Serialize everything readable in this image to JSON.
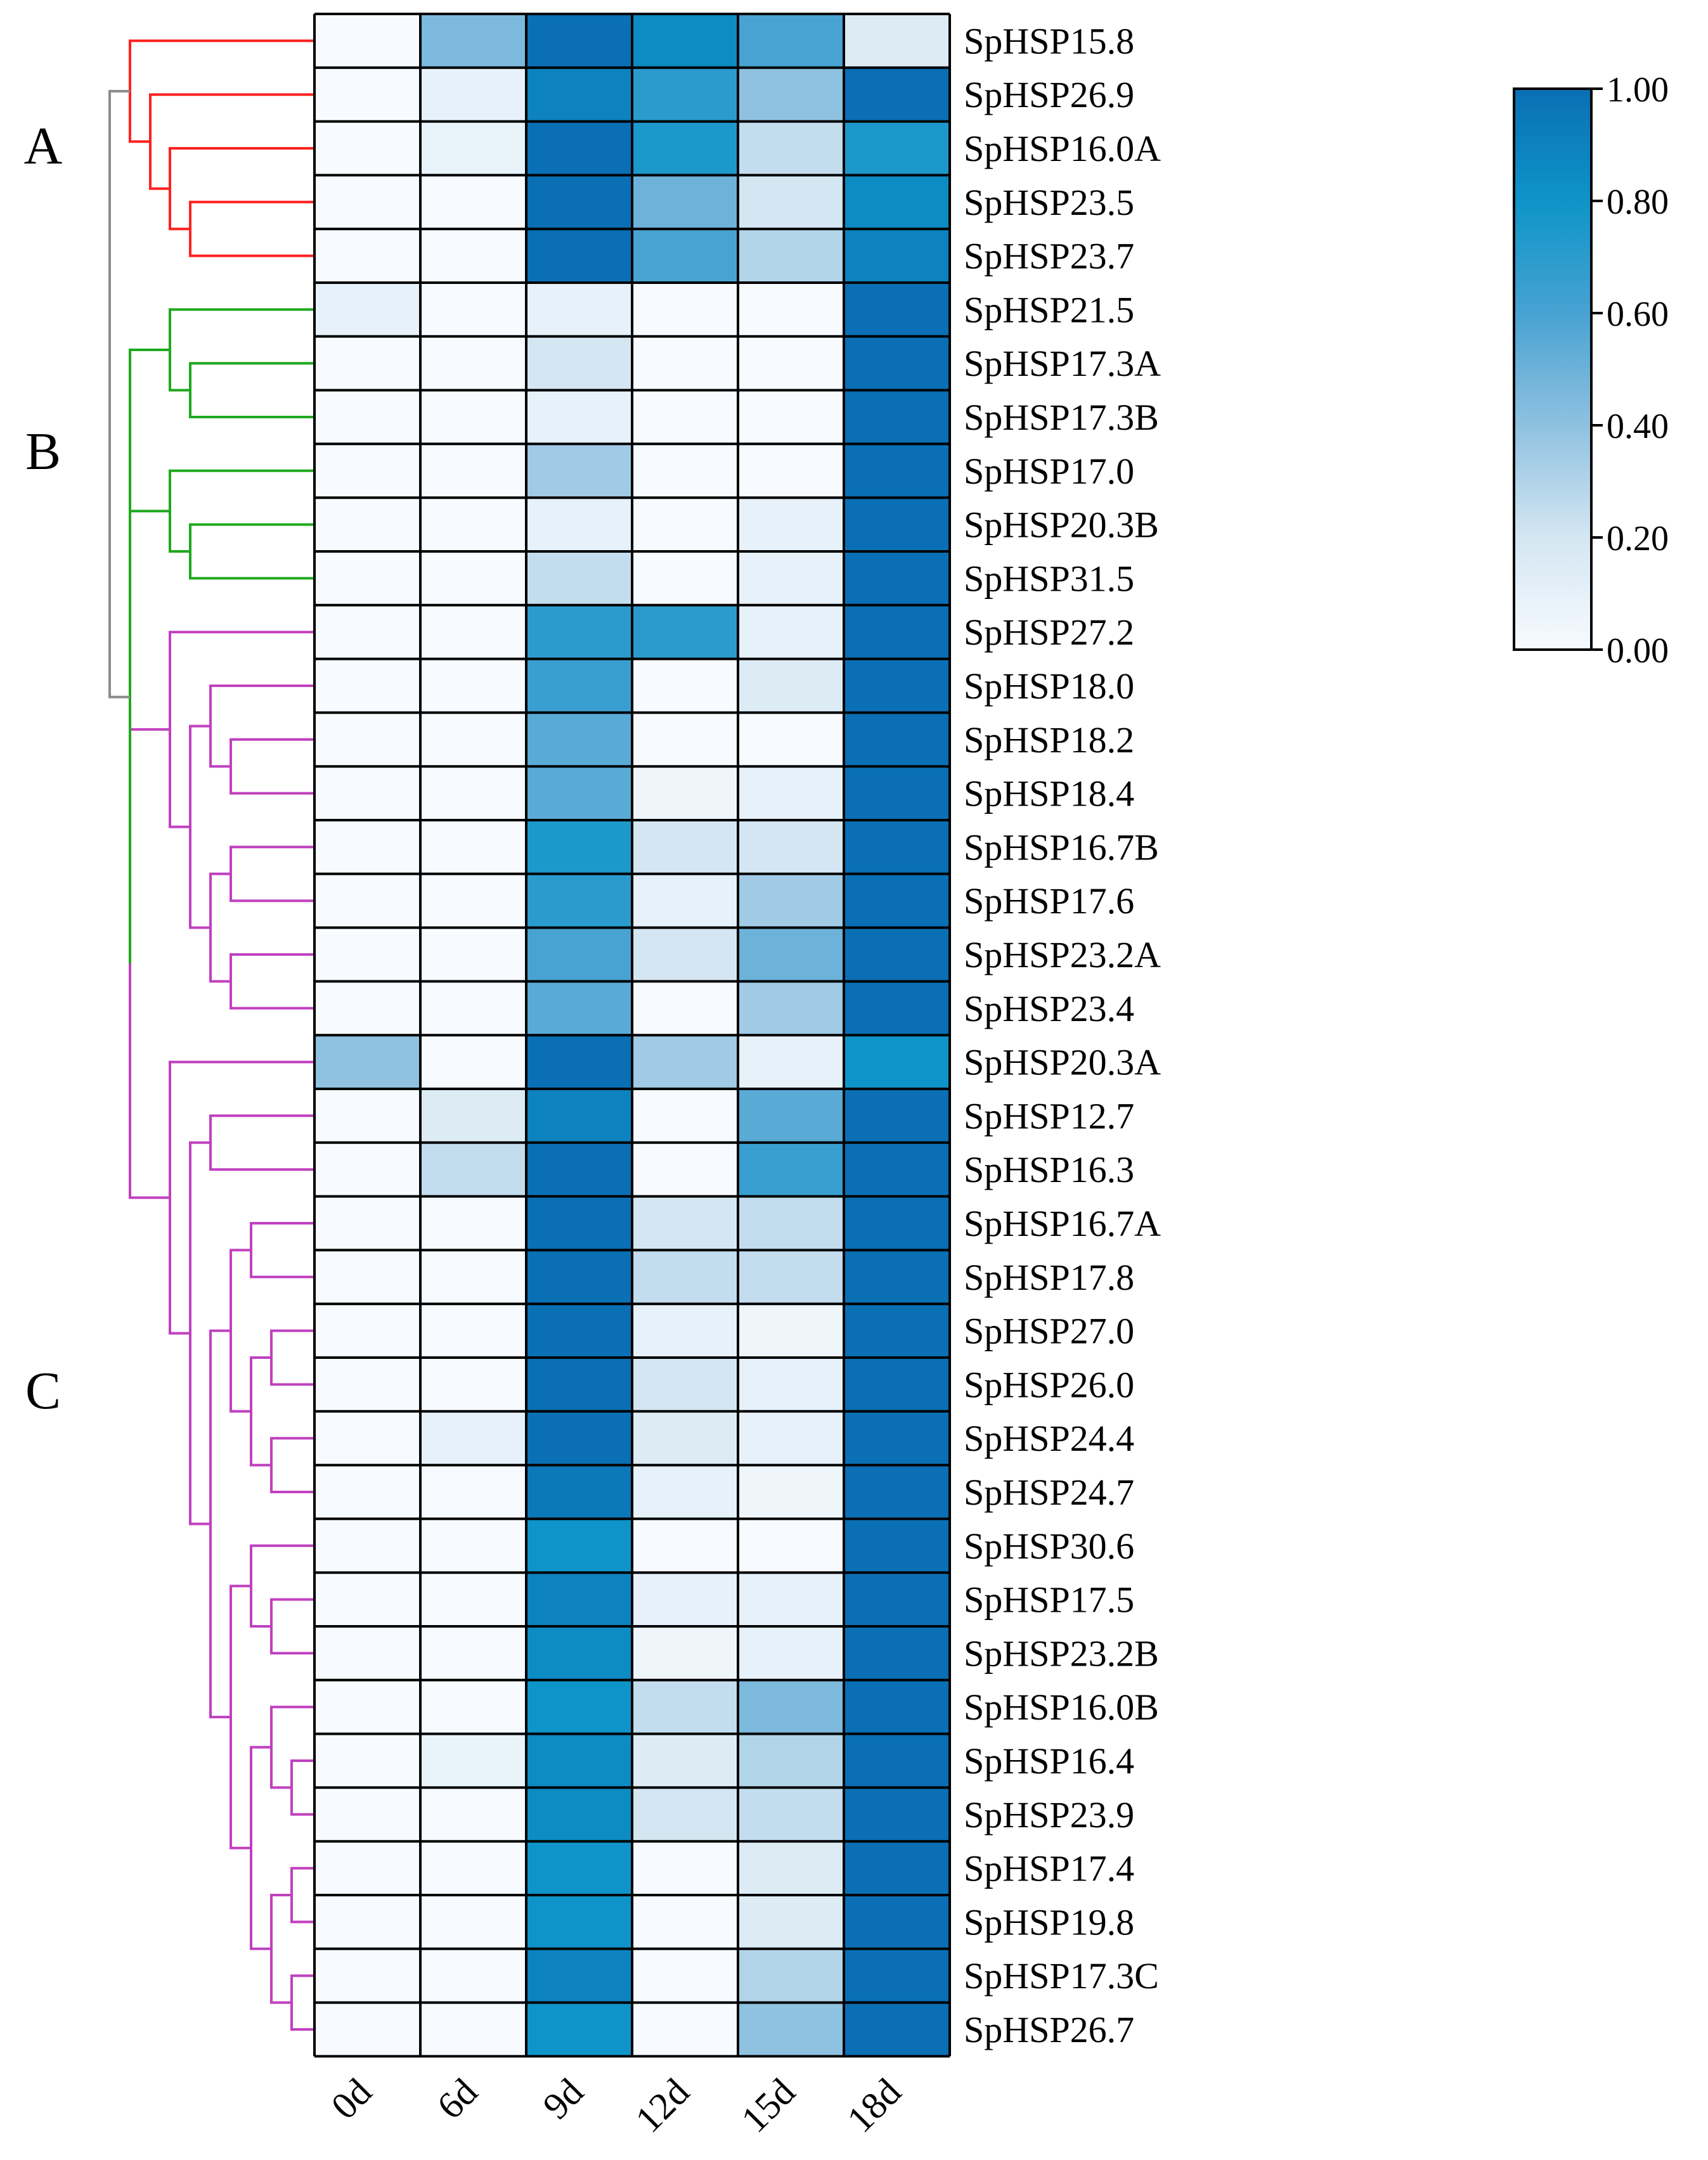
{
  "chart_data": {
    "type": "heatmap",
    "title": "",
    "xlabel": "",
    "ylabel": "",
    "columns": [
      "0d",
      "6d",
      "9d",
      "12d",
      "15d",
      "18d"
    ],
    "rows": [
      "SpHSP15.8",
      "SpHSP26.9",
      "SpHSP16.0A",
      "SpHSP23.5",
      "SpHSP23.7",
      "SpHSP21.5",
      "SpHSP17.3A",
      "SpHSP17.3B",
      "SpHSP17.0",
      "SpHSP20.3B",
      "SpHSP31.5",
      "SpHSP27.2",
      "SpHSP18.0",
      "SpHSP18.2",
      "SpHSP18.4",
      "SpHSP16.7B",
      "SpHSP17.6",
      "SpHSP23.2A",
      "SpHSP23.4",
      "SpHSP20.3A",
      "SpHSP12.7",
      "SpHSP16.3",
      "SpHSP16.7A",
      "SpHSP17.8",
      "SpHSP27.0",
      "SpHSP26.0",
      "SpHSP24.4",
      "SpHSP24.7",
      "SpHSP30.6",
      "SpHSP17.5",
      "SpHSP23.2B",
      "SpHSP16.0B",
      "SpHSP16.4",
      "SpHSP23.9",
      "SpHSP17.4",
      "SpHSP19.8",
      "SpHSP17.3C",
      "SpHSP26.7"
    ],
    "values": [
      [
        0.0,
        0.45,
        1.0,
        0.85,
        0.6,
        0.15
      ],
      [
        0.0,
        0.1,
        0.9,
        0.7,
        0.4,
        1.0
      ],
      [
        0.0,
        0.08,
        1.0,
        0.75,
        0.25,
        0.75
      ],
      [
        0.0,
        0.0,
        1.0,
        0.5,
        0.2,
        0.85
      ],
      [
        0.0,
        0.0,
        1.0,
        0.6,
        0.3,
        0.9
      ],
      [
        0.1,
        0.0,
        0.1,
        0.0,
        0.0,
        1.0
      ],
      [
        0.0,
        0.0,
        0.2,
        0.0,
        0.0,
        1.0
      ],
      [
        0.0,
        0.0,
        0.1,
        0.0,
        0.0,
        1.0
      ],
      [
        0.0,
        0.0,
        0.35,
        0.0,
        0.0,
        1.0
      ],
      [
        0.0,
        0.0,
        0.1,
        0.0,
        0.1,
        1.0
      ],
      [
        0.0,
        0.0,
        0.25,
        0.0,
        0.1,
        1.0
      ],
      [
        0.0,
        0.0,
        0.7,
        0.7,
        0.1,
        1.0
      ],
      [
        0.0,
        0.0,
        0.65,
        0.0,
        0.15,
        1.0
      ],
      [
        0.0,
        0.0,
        0.55,
        0.0,
        0.0,
        1.0
      ],
      [
        0.0,
        0.0,
        0.55,
        0.05,
        0.1,
        1.0
      ],
      [
        0.0,
        0.0,
        0.75,
        0.2,
        0.2,
        1.0
      ],
      [
        0.0,
        0.0,
        0.7,
        0.1,
        0.35,
        1.0
      ],
      [
        0.0,
        0.0,
        0.6,
        0.2,
        0.5,
        1.0
      ],
      [
        0.0,
        0.0,
        0.55,
        0.0,
        0.35,
        1.0
      ],
      [
        0.4,
        0.0,
        1.0,
        0.35,
        0.1,
        0.8
      ],
      [
        0.0,
        0.15,
        0.9,
        0.0,
        0.55,
        1.0
      ],
      [
        0.0,
        0.25,
        1.0,
        0.0,
        0.65,
        1.0
      ],
      [
        0.0,
        0.0,
        1.0,
        0.2,
        0.25,
        1.0
      ],
      [
        0.0,
        0.0,
        1.0,
        0.25,
        0.25,
        1.0
      ],
      [
        0.0,
        0.0,
        1.0,
        0.1,
        0.05,
        1.0
      ],
      [
        0.0,
        0.0,
        1.0,
        0.2,
        0.1,
        1.0
      ],
      [
        0.0,
        0.1,
        1.0,
        0.15,
        0.1,
        1.0
      ],
      [
        0.0,
        0.0,
        0.95,
        0.1,
        0.05,
        1.0
      ],
      [
        0.0,
        0.0,
        0.8,
        0.0,
        0.0,
        1.0
      ],
      [
        0.0,
        0.0,
        0.9,
        0.1,
        0.1,
        1.0
      ],
      [
        0.0,
        0.0,
        0.85,
        0.05,
        0.1,
        1.0
      ],
      [
        0.0,
        0.0,
        0.8,
        0.25,
        0.45,
        1.0
      ],
      [
        0.0,
        0.08,
        0.85,
        0.15,
        0.3,
        1.0
      ],
      [
        0.0,
        0.0,
        0.85,
        0.2,
        0.25,
        1.0
      ],
      [
        0.0,
        0.0,
        0.8,
        0.0,
        0.15,
        1.0
      ],
      [
        0.0,
        0.0,
        0.8,
        0.0,
        0.15,
        1.0
      ],
      [
        0.0,
        0.0,
        0.9,
        0.0,
        0.3,
        1.0
      ],
      [
        0.0,
        0.0,
        0.8,
        0.0,
        0.4,
        1.0
      ]
    ],
    "colorbar": {
      "range": [
        0,
        1
      ],
      "ticks": [
        "0.00",
        "0.20",
        "0.40",
        "0.60",
        "0.80",
        "1.00"
      ],
      "low_color": "#f7fbff",
      "high_color": "#0a6fb4"
    },
    "groups": [
      {
        "label": "A",
        "color": "#ff2020"
      },
      {
        "label": "B",
        "color": "#1ea81e"
      },
      {
        "label": "C",
        "color": "#c040c0"
      }
    ],
    "root_color": "#8c8c8c",
    "grid_color": "#000000"
  }
}
